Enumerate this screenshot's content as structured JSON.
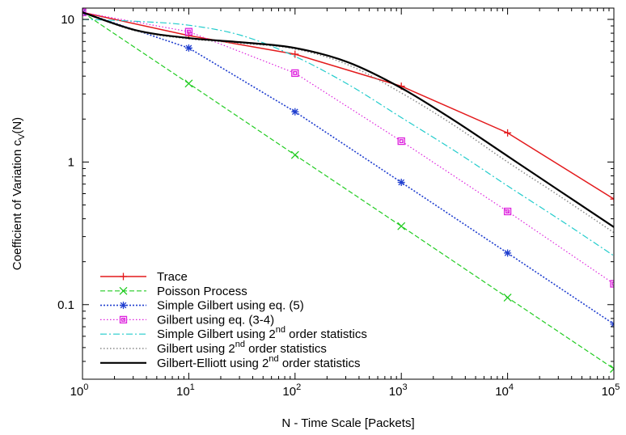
{
  "chart_data": {
    "type": "line",
    "title": "",
    "xlabel": "N - Time Scale [Packets]",
    "ylabel": "Coefficient of Variation c",
    "ylabel_sub": "V",
    "ylabel_suffix": "(N)",
    "xscale": "log",
    "yscale": "log",
    "xlim": [
      1,
      100000
    ],
    "ylim": [
      0.03,
      12
    ],
    "x_ticks": [
      {
        "value": 1,
        "base": "10",
        "exp": "0"
      },
      {
        "value": 10,
        "base": "10",
        "exp": "1"
      },
      {
        "value": 100,
        "base": "10",
        "exp": "2"
      },
      {
        "value": 1000,
        "base": "10",
        "exp": "3"
      },
      {
        "value": 10000,
        "base": "10",
        "exp": "4"
      },
      {
        "value": 100000,
        "base": "10",
        "exp": "5"
      }
    ],
    "y_ticks": [
      {
        "value": 0.1,
        "label": "0.1"
      },
      {
        "value": 1,
        "label": "1"
      },
      {
        "value": 10,
        "label": "10"
      }
    ],
    "grid": false,
    "legend_position": "bottom-left",
    "series": [
      {
        "name": "Trace",
        "color": "#e31a1c",
        "dash": "solid",
        "width": 1.5,
        "marker": "plus",
        "x": [
          1,
          10,
          100,
          1000,
          10000,
          100000
        ],
        "y": [
          11.2,
          7.7,
          5.7,
          3.4,
          1.6,
          0.55
        ]
      },
      {
        "name": "Poisson Process",
        "color": "#22cc22",
        "dash": "dashed",
        "width": 1.2,
        "marker": "x",
        "x": [
          1,
          10,
          100,
          1000,
          10000,
          100000
        ],
        "y": [
          11.2,
          3.55,
          1.12,
          0.355,
          0.112,
          0.0355
        ]
      },
      {
        "name": "Simple Gilbert using eq. (5)",
        "color": "#1f3ecf",
        "dash": "dotted-dense",
        "width": 1.6,
        "marker": "star",
        "x": [
          1,
          10,
          100,
          1000,
          10000,
          100000
        ],
        "y": [
          11.2,
          6.3,
          2.25,
          0.72,
          0.23,
          0.073
        ]
      },
      {
        "name": "Gilbert using eq. (3-4)",
        "color": "#dd22dd",
        "dash": "dotted",
        "width": 1.2,
        "marker": "square",
        "x": [
          1,
          10,
          100,
          1000,
          10000,
          100000
        ],
        "y": [
          11.2,
          8.2,
          4.2,
          1.4,
          0.45,
          0.14
        ]
      },
      {
        "name": "Simple Gilbert using 2",
        "name_sup": "nd",
        "name_suffix": " order statistics",
        "color": "#22cccc",
        "dash": "dashdot",
        "width": 1.2,
        "marker": "none",
        "x": [
          1,
          3.16,
          10,
          31.6,
          100,
          316,
          1000,
          3162,
          10000,
          31623,
          100000
        ],
        "y": [
          10,
          9.7,
          9.1,
          7.7,
          5.5,
          3.5,
          2.05,
          1.2,
          0.68,
          0.39,
          0.22
        ]
      },
      {
        "name": "Gilbert using 2",
        "name_sup": "nd",
        "name_suffix": " order statistics",
        "color": "#888888",
        "dash": "dotted",
        "width": 1.5,
        "marker": "none",
        "x": [
          1,
          3.16,
          10,
          31.6,
          100,
          316,
          1000,
          3162,
          10000,
          31623,
          100000
        ],
        "y": [
          11.2,
          8.3,
          7.3,
          6.8,
          6.2,
          4.8,
          3.05,
          1.8,
          1.0,
          0.57,
          0.32
        ]
      },
      {
        "name": "Gilbert-Elliott using 2",
        "name_sup": "nd",
        "name_suffix": " order statistics",
        "color": "#000000",
        "dash": "solid",
        "width": 2.2,
        "marker": "none",
        "x": [
          1,
          3.16,
          10,
          31.6,
          100,
          316,
          1000,
          3162,
          10000,
          31623,
          100000
        ],
        "y": [
          11.2,
          8.4,
          7.4,
          6.9,
          6.3,
          5.0,
          3.3,
          1.95,
          1.1,
          0.62,
          0.35
        ]
      }
    ]
  }
}
